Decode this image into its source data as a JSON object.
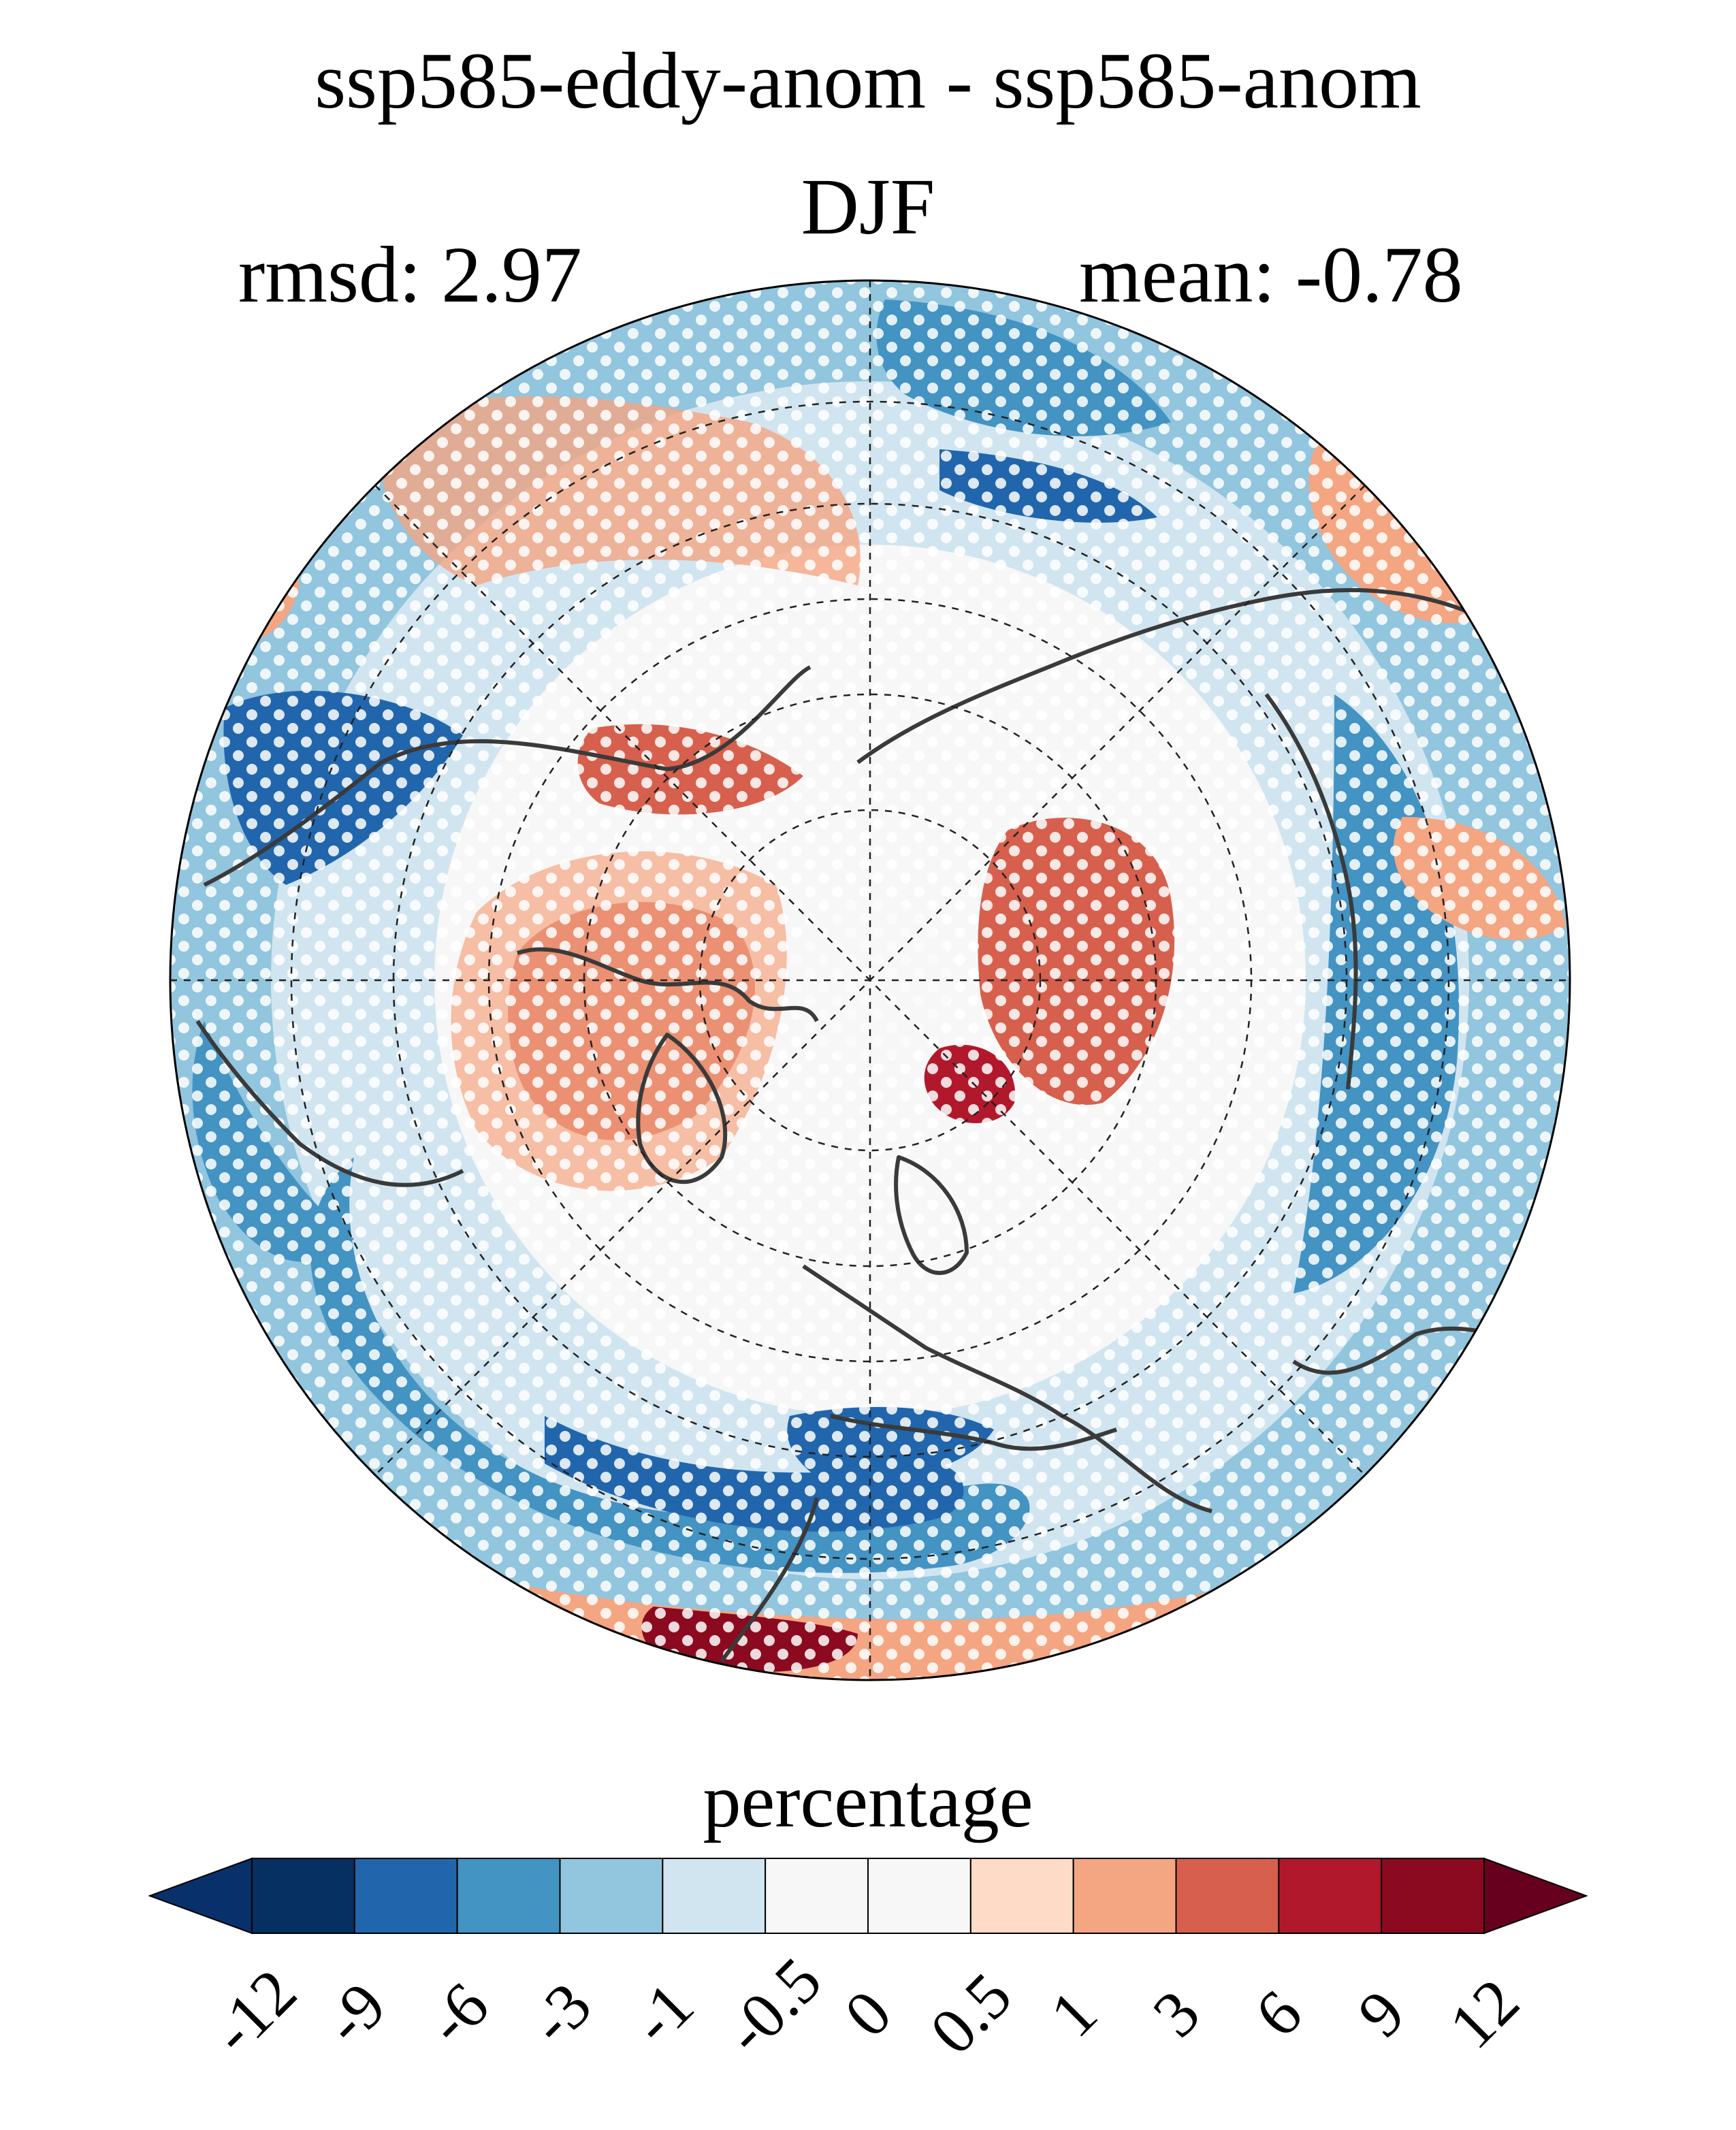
{
  "title": "ssp585-eddy-anom - ssp585-anom",
  "season": "DJF",
  "rmsd_text": "rmsd: 2.97",
  "mean_text": "mean: -0.78",
  "colorbar": {
    "label": "percentage",
    "ticks": [
      "-12",
      "-9",
      "-6",
      "-3",
      "-1",
      "-0.5",
      "0",
      "0.5",
      "1",
      "3",
      "6",
      "9",
      "12"
    ],
    "colors": [
      "#08306b",
      "#053061",
      "#2166ac",
      "#4393c3",
      "#92c5de",
      "#d1e5f0",
      "#f7f7f7",
      "#f7f7f7",
      "#fddbc7",
      "#f4a582",
      "#d6604d",
      "#b2182b",
      "#8b0a1f",
      "#67001f"
    ]
  },
  "map": {
    "projection": "north-polar-stereographic",
    "stippling": "white-dots",
    "palette": {
      "deep_blue": "#2166ac",
      "mid_blue": "#4393c3",
      "light_blue": "#92c5de",
      "pale_blue": "#d1e5f0",
      "white": "#f7f7f7",
      "pale_red": "#fddbc7",
      "light_red": "#f4a582",
      "mid_red": "#d6604d",
      "deep_red": "#b2182b",
      "darkest_red": "#8b0a1f"
    }
  }
}
